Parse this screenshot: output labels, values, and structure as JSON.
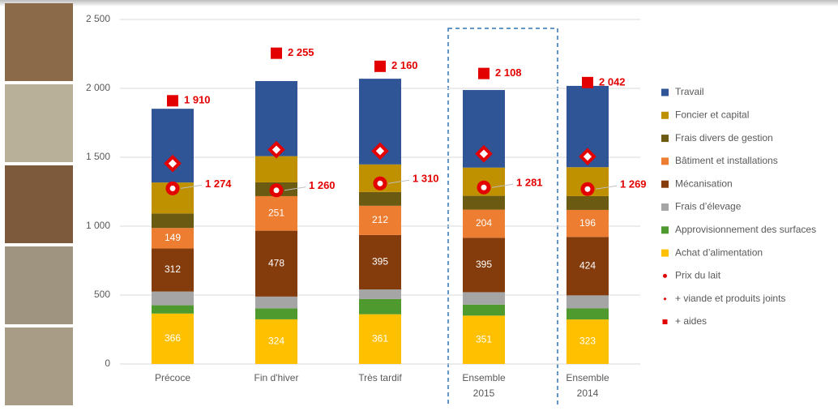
{
  "chart_data": {
    "type": "stacked-bar",
    "categories": [
      "Précoce",
      "Fin d'hiver",
      "Très tardif",
      "Ensemble\n2015",
      "Ensemble\n2014"
    ],
    "ylim": [
      0,
      2500
    ],
    "yticks": [
      0,
      500,
      {
        "value": 1000,
        "label": "1 000"
      },
      {
        "value": 1500,
        "label": "1 500"
      },
      {
        "value": 2000,
        "label": "2 000"
      },
      {
        "value": 2500,
        "label": "2 500"
      }
    ],
    "grid": true,
    "legend": "right",
    "series": [
      {
        "name": "Achat d’alimentation",
        "color": "#ffc000",
        "values": [
          366,
          324,
          361,
          351,
          323
        ],
        "data_labels": true
      },
      {
        "name": "Approvisionnement des surfaces",
        "color": "#4e9a2e",
        "values": [
          60,
          80,
          110,
          80,
          80
        ]
      },
      {
        "name": "Frais d’élevage",
        "color": "#a5a5a5",
        "values": [
          100,
          85,
          70,
          90,
          95
        ]
      },
      {
        "name": "Mécanisation",
        "color": "#843c0c",
        "values": [
          312,
          478,
          395,
          395,
          424
        ],
        "data_labels": true
      },
      {
        "name": "Bâtiment et installations",
        "color": "#ed7d31",
        "values": [
          149,
          251,
          212,
          204,
          196
        ],
        "data_labels": true
      },
      {
        "name": "Frais divers de gestion",
        "color": "#6b5a12",
        "values": [
          105,
          100,
          100,
          100,
          100
        ]
      },
      {
        "name": "Foncier et capital",
        "color": "#bf9000",
        "values": [
          225,
          190,
          200,
          205,
          210
        ]
      },
      {
        "name": "Travail",
        "color": "#2f5597",
        "values": [
          535,
          545,
          622,
          563,
          590
        ]
      }
    ],
    "markers": [
      {
        "name": "Prix du lait",
        "shape": "circle",
        "color": "#e30000",
        "values": [
          1274,
          1260,
          1310,
          1281,
          1269
        ],
        "value_labels": [
          "1 274",
          "1 260",
          "1 310",
          "1 281",
          "1 269"
        ]
      },
      {
        "name": "+ viande et produits joints",
        "shape": "diamond",
        "color": "#e30000",
        "values": [
          1455,
          1555,
          1545,
          1525,
          1505
        ]
      },
      {
        "name": "+ aides",
        "shape": "square",
        "color": "#e30000",
        "values": [
          1910,
          2255,
          2160,
          2108,
          2042
        ],
        "value_labels": [
          "1 910",
          "2 255",
          "2 160",
          "2 108",
          "2 042"
        ]
      }
    ]
  }
}
